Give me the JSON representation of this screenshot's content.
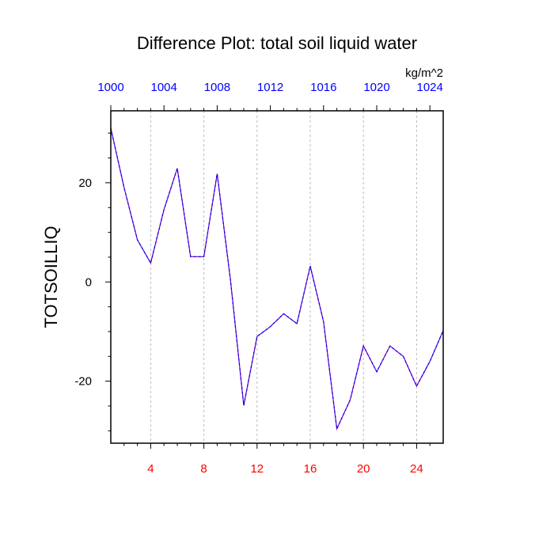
{
  "chart_data": {
    "type": "line",
    "title": "Difference Plot: total soil liquid water",
    "ylabel": "TOTSOILLIQ",
    "units": "kg/m^2",
    "xlim": [
      1,
      26
    ],
    "ylim": [
      -32.5,
      34.5
    ],
    "grid": "vertical dashed at major x ticks",
    "x_bottom": {
      "ticks": [
        4,
        8,
        12,
        16,
        20,
        24
      ],
      "labels": [
        "4",
        "8",
        "12",
        "16",
        "20",
        "24"
      ],
      "color": "#ff0000"
    },
    "x_top": {
      "ticks": [
        1,
        5,
        9,
        13,
        17,
        21,
        25
      ],
      "labels": [
        "1000",
        "1004",
        "1008",
        "1012",
        "1016",
        "1020",
        "1024"
      ],
      "color": "#0000ff"
    },
    "y_axis": {
      "ticks": [
        -20,
        0,
        20
      ],
      "labels": [
        "-20",
        "0",
        "20"
      ]
    },
    "series": [
      {
        "color": "#7a00b8",
        "dash_color": "#0000ff",
        "x": [
          1,
          2,
          3,
          4,
          5,
          6,
          7,
          8,
          9,
          10,
          11,
          12,
          13,
          14,
          15,
          16,
          17,
          18,
          19,
          20,
          21,
          22,
          23,
          24,
          25,
          26
        ],
        "values": [
          31,
          19,
          8.5,
          3.8,
          14.6,
          22.9,
          5.1,
          5.1,
          21.8,
          0.4,
          -24.9,
          -11,
          -9,
          -6.4,
          -8.4,
          3.2,
          -8,
          -29.6,
          -23.8,
          -12.9,
          -18.1,
          -12.9,
          -15,
          -21,
          -16,
          -9.8
        ]
      }
    ]
  }
}
